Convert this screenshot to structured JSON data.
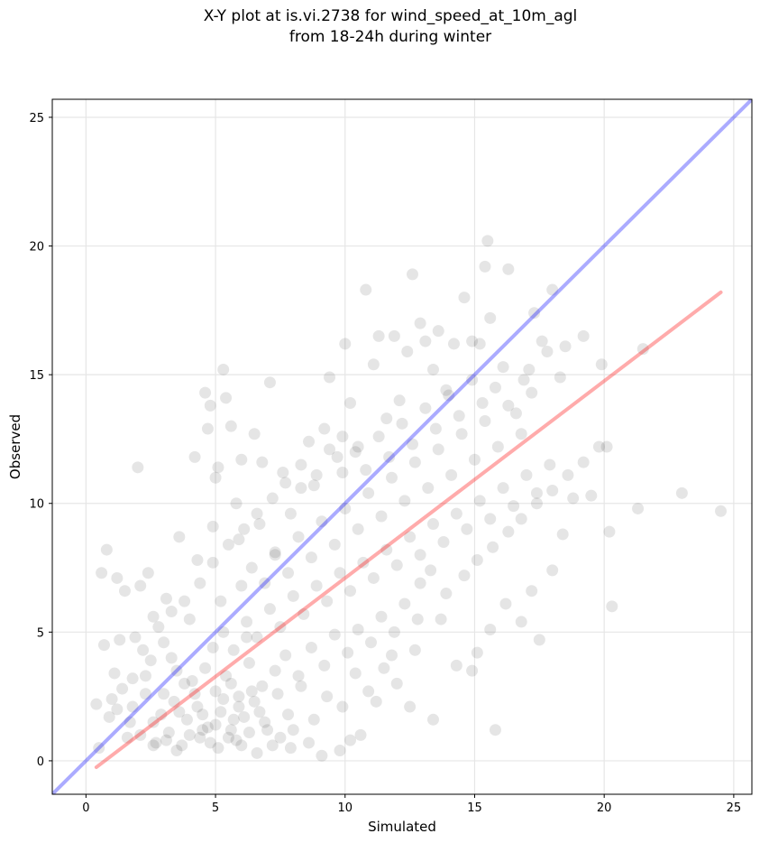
{
  "chart_data": {
    "type": "scatter",
    "title": "X-Y plot at is.vi.2738 for wind_speed_at_10m_agl",
    "subtitle": "from 18-24h during winter",
    "xlabel": "Simulated",
    "ylabel": "Observed",
    "xlim": [
      -1.3,
      25.7
    ],
    "ylim": [
      -1.3,
      25.7
    ],
    "x_ticks": [
      0,
      5,
      10,
      15,
      20,
      25
    ],
    "y_ticks": [
      0,
      5,
      10,
      15,
      20,
      25
    ],
    "grid": true,
    "marker_color": "#000000",
    "marker_alpha": 0.1,
    "lines": [
      {
        "role": "identity",
        "color": "#0000ff",
        "alpha": 0.33,
        "x": [
          -1.3,
          25.7
        ],
        "y": [
          -1.3,
          25.7
        ]
      },
      {
        "role": "regression-fit",
        "color": "#ff0000",
        "alpha": 0.33,
        "x": [
          0.4,
          24.5
        ],
        "y": [
          -0.25,
          18.2
        ]
      }
    ],
    "points": [
      [
        0.4,
        2.2
      ],
      [
        0.5,
        0.5
      ],
      [
        0.6,
        7.3
      ],
      [
        0.7,
        4.5
      ],
      [
        0.8,
        8.2
      ],
      [
        0.9,
        1.7
      ],
      [
        1.0,
        2.4
      ],
      [
        1.1,
        3.4
      ],
      [
        1.2,
        7.1
      ],
      [
        1.3,
        4.7
      ],
      [
        1.5,
        6.6
      ],
      [
        1.6,
        0.9
      ],
      [
        1.8,
        2.1
      ],
      [
        1.9,
        4.8
      ],
      [
        2.0,
        11.4
      ],
      [
        2.1,
        6.8
      ],
      [
        2.3,
        3.3
      ],
      [
        2.4,
        7.3
      ],
      [
        2.6,
        0.6
      ],
      [
        2.8,
        5.2
      ],
      [
        3.0,
        2.6
      ],
      [
        3.1,
        6.3
      ],
      [
        3.3,
        4.0
      ],
      [
        3.5,
        0.4
      ],
      [
        3.6,
        8.7
      ],
      [
        3.8,
        3.0
      ],
      [
        4.0,
        5.5
      ],
      [
        4.2,
        11.8
      ],
      [
        4.3,
        7.8
      ],
      [
        4.5,
        1.2
      ],
      [
        4.6,
        14.3
      ],
      [
        4.7,
        12.9
      ],
      [
        4.8,
        13.8
      ],
      [
        4.9,
        9.1
      ],
      [
        5.0,
        11.0
      ],
      [
        5.1,
        11.4
      ],
      [
        5.2,
        6.2
      ],
      [
        5.3,
        15.2
      ],
      [
        5.4,
        14.1
      ],
      [
        5.6,
        13.0
      ],
      [
        5.8,
        10.0
      ],
      [
        5.9,
        8.6
      ],
      [
        6.0,
        11.7
      ],
      [
        6.2,
        4.8
      ],
      [
        6.5,
        12.7
      ],
      [
        6.7,
        9.2
      ],
      [
        6.8,
        11.6
      ],
      [
        7.1,
        14.7
      ],
      [
        7.3,
        8.0
      ],
      [
        7.6,
        11.2
      ],
      [
        7.9,
        9.6
      ],
      [
        8.3,
        10.6
      ],
      [
        8.6,
        12.4
      ],
      [
        8.9,
        11.1
      ],
      [
        9.2,
        12.9
      ],
      [
        9.4,
        14.9
      ],
      [
        9.7,
        11.8
      ],
      [
        10.0,
        16.2
      ],
      [
        10.2,
        13.9
      ],
      [
        10.5,
        12.2
      ],
      [
        10.8,
        18.3
      ],
      [
        11.1,
        15.4
      ],
      [
        11.3,
        16.5
      ],
      [
        11.6,
        13.3
      ],
      [
        11.9,
        16.5
      ],
      [
        12.1,
        14.0
      ],
      [
        12.4,
        15.9
      ],
      [
        12.6,
        18.9
      ],
      [
        12.9,
        17.0
      ],
      [
        13.1,
        16.3
      ],
      [
        13.4,
        15.2
      ],
      [
        13.6,
        16.7
      ],
      [
        13.9,
        14.4
      ],
      [
        14.2,
        16.2
      ],
      [
        14.6,
        18.0
      ],
      [
        14.9,
        16.3
      ],
      [
        15.2,
        16.2
      ],
      [
        15.4,
        19.2
      ],
      [
        15.5,
        20.2
      ],
      [
        15.6,
        17.2
      ],
      [
        16.1,
        15.3
      ],
      [
        16.3,
        19.1
      ],
      [
        16.6,
        13.5
      ],
      [
        16.9,
        14.8
      ],
      [
        17.1,
        15.2
      ],
      [
        17.3,
        17.4
      ],
      [
        17.6,
        16.3
      ],
      [
        17.8,
        15.9
      ],
      [
        18.0,
        18.3
      ],
      [
        18.3,
        14.9
      ],
      [
        18.5,
        16.1
      ],
      [
        18.8,
        10.2
      ],
      [
        19.2,
        16.5
      ],
      [
        19.5,
        10.3
      ],
      [
        19.9,
        15.4
      ],
      [
        20.1,
        12.2
      ],
      [
        20.2,
        8.9
      ],
      [
        20.3,
        6.0
      ],
      [
        21.3,
        9.8
      ],
      [
        21.5,
        16.0
      ],
      [
        23.0,
        10.4
      ],
      [
        24.5,
        9.7
      ],
      [
        12.5,
        2.1
      ],
      [
        13.4,
        1.6
      ],
      [
        14.3,
        3.7
      ],
      [
        15.1,
        4.2
      ],
      [
        15.8,
        1.2
      ],
      [
        16.2,
        6.1
      ],
      [
        16.8,
        5.4
      ],
      [
        17.2,
        6.6
      ],
      [
        17.5,
        4.7
      ],
      [
        18.0,
        7.4
      ],
      [
        18.4,
        8.8
      ],
      [
        15.6,
        5.1
      ],
      [
        14.9,
        3.5
      ],
      [
        13.7,
        5.5
      ],
      [
        12.9,
        6.9
      ],
      [
        11.8,
        4.1
      ],
      [
        11.2,
        2.3
      ],
      [
        10.6,
        1.0
      ],
      [
        10.2,
        0.8
      ],
      [
        9.8,
        0.4
      ],
      [
        9.1,
        0.2
      ],
      [
        8.6,
        0.7
      ],
      [
        7.9,
        0.5
      ],
      [
        7.2,
        0.6
      ],
      [
        6.6,
        0.3
      ],
      [
        5.8,
        0.8
      ],
      [
        5.1,
        0.5
      ],
      [
        4.4,
        0.9
      ],
      [
        3.7,
        0.6
      ],
      [
        3.2,
        1.1
      ],
      [
        2.7,
        0.7
      ],
      [
        2.1,
        1.0
      ],
      [
        1.7,
        1.5
      ],
      [
        1.2,
        2.0
      ],
      [
        2.3,
        2.6
      ],
      [
        2.9,
        1.8
      ],
      [
        3.4,
        2.3
      ],
      [
        3.9,
        1.6
      ],
      [
        4.3,
        2.1
      ],
      [
        4.7,
        1.3
      ],
      [
        5.2,
        1.9
      ],
      [
        5.6,
        1.2
      ],
      [
        6.1,
        1.7
      ],
      [
        6.5,
        2.3
      ],
      [
        6.9,
        1.5
      ],
      [
        7.4,
        2.6
      ],
      [
        7.8,
        1.8
      ],
      [
        8.3,
        2.9
      ],
      [
        4.1,
        3.1
      ],
      [
        4.6,
        3.6
      ],
      [
        5.0,
        2.7
      ],
      [
        5.4,
        3.3
      ],
      [
        5.9,
        2.5
      ],
      [
        6.3,
        3.8
      ],
      [
        6.8,
        2.9
      ],
      [
        7.3,
        3.5
      ],
      [
        7.7,
        4.1
      ],
      [
        8.2,
        3.3
      ],
      [
        8.7,
        4.4
      ],
      [
        9.2,
        3.7
      ],
      [
        9.6,
        4.9
      ],
      [
        10.1,
        4.2
      ],
      [
        10.5,
        5.1
      ],
      [
        11.0,
        4.6
      ],
      [
        11.4,
        5.6
      ],
      [
        11.9,
        5.0
      ],
      [
        12.3,
        6.1
      ],
      [
        12.8,
        5.5
      ],
      [
        4.9,
        4.4
      ],
      [
        5.3,
        5.0
      ],
      [
        5.7,
        4.3
      ],
      [
        6.2,
        5.4
      ],
      [
        6.6,
        4.8
      ],
      [
        7.1,
        5.9
      ],
      [
        7.5,
        5.2
      ],
      [
        8.0,
        6.4
      ],
      [
        8.4,
        5.7
      ],
      [
        8.9,
        6.8
      ],
      [
        9.3,
        6.2
      ],
      [
        9.8,
        7.3
      ],
      [
        10.2,
        6.6
      ],
      [
        10.7,
        7.7
      ],
      [
        11.1,
        7.1
      ],
      [
        11.6,
        8.2
      ],
      [
        12.0,
        7.6
      ],
      [
        12.5,
        8.7
      ],
      [
        12.9,
        8.0
      ],
      [
        13.4,
        9.2
      ],
      [
        13.8,
        8.5
      ],
      [
        14.3,
        9.6
      ],
      [
        14.7,
        9.0
      ],
      [
        15.2,
        10.1
      ],
      [
        15.6,
        9.4
      ],
      [
        16.1,
        10.6
      ],
      [
        16.5,
        9.9
      ],
      [
        17.0,
        11.1
      ],
      [
        17.4,
        10.4
      ],
      [
        17.9,
        11.5
      ],
      [
        6.0,
        6.8
      ],
      [
        6.4,
        7.5
      ],
      [
        6.9,
        6.9
      ],
      [
        7.3,
        8.1
      ],
      [
        7.8,
        7.3
      ],
      [
        8.2,
        8.7
      ],
      [
        8.7,
        7.9
      ],
      [
        9.1,
        9.3
      ],
      [
        9.6,
        8.4
      ],
      [
        10.0,
        9.8
      ],
      [
        10.5,
        9.0
      ],
      [
        10.9,
        10.4
      ],
      [
        11.4,
        9.5
      ],
      [
        11.8,
        11.0
      ],
      [
        12.3,
        10.1
      ],
      [
        12.7,
        11.6
      ],
      [
        13.2,
        10.6
      ],
      [
        13.6,
        12.1
      ],
      [
        14.1,
        11.1
      ],
      [
        14.5,
        12.7
      ],
      [
        15.0,
        11.7
      ],
      [
        15.4,
        13.2
      ],
      [
        15.9,
        12.2
      ],
      [
        16.3,
        13.8
      ],
      [
        16.8,
        12.7
      ],
      [
        17.2,
        14.3
      ],
      [
        9.9,
        11.2
      ],
      [
        10.4,
        12.0
      ],
      [
        10.8,
        11.3
      ],
      [
        11.3,
        12.6
      ],
      [
        11.7,
        11.8
      ],
      [
        12.2,
        13.1
      ],
      [
        12.6,
        12.3
      ],
      [
        13.1,
        13.7
      ],
      [
        13.5,
        12.9
      ],
      [
        14.0,
        14.2
      ],
      [
        14.4,
        13.4
      ],
      [
        14.9,
        14.8
      ],
      [
        15.3,
        13.9
      ],
      [
        15.8,
        14.5
      ],
      [
        2.5,
        3.9
      ],
      [
        3.0,
        4.6
      ],
      [
        3.5,
        3.5
      ],
      [
        1.8,
        3.2
      ],
      [
        2.2,
        4.3
      ],
      [
        1.4,
        2.8
      ],
      [
        3.3,
        5.8
      ],
      [
        2.6,
        5.6
      ],
      [
        3.8,
        6.2
      ],
      [
        4.4,
        6.9
      ],
      [
        4.9,
        7.7
      ],
      [
        5.5,
        8.4
      ],
      [
        6.1,
        9.0
      ],
      [
        6.6,
        9.6
      ],
      [
        7.2,
        10.2
      ],
      [
        7.7,
        10.8
      ],
      [
        8.3,
        11.5
      ],
      [
        8.8,
        10.7
      ],
      [
        9.4,
        12.1
      ],
      [
        9.9,
        12.6
      ],
      [
        14.6,
        7.2
      ],
      [
        15.1,
        7.8
      ],
      [
        15.7,
        8.3
      ],
      [
        16.3,
        8.9
      ],
      [
        16.8,
        9.4
      ],
      [
        17.4,
        10.0
      ],
      [
        18.0,
        10.5
      ],
      [
        18.6,
        11.1
      ],
      [
        19.2,
        11.6
      ],
      [
        19.8,
        12.2
      ],
      [
        13.9,
        6.5
      ],
      [
        13.3,
        7.4
      ],
      [
        12.7,
        4.3
      ],
      [
        12.0,
        3.0
      ],
      [
        11.5,
        3.6
      ],
      [
        10.9,
        2.7
      ],
      [
        10.4,
        3.4
      ],
      [
        9.9,
        2.1
      ],
      [
        9.3,
        2.5
      ],
      [
        8.8,
        1.6
      ],
      [
        5.5,
        0.9
      ],
      [
        5.7,
        1.6
      ],
      [
        4.8,
        0.7
      ],
      [
        5.9,
        2.1
      ],
      [
        6.3,
        1.1
      ],
      [
        4.5,
        1.8
      ],
      [
        5.0,
        1.4
      ],
      [
        6.7,
        1.9
      ],
      [
        7.0,
        1.2
      ],
      [
        5.3,
        2.4
      ],
      [
        4.0,
        1.0
      ],
      [
        3.6,
        1.9
      ],
      [
        6.0,
        0.6
      ],
      [
        6.4,
        2.7
      ],
      [
        7.5,
        0.9
      ],
      [
        8.0,
        1.2
      ],
      [
        3.1,
        0.8
      ],
      [
        2.6,
        1.5
      ],
      [
        5.6,
        3.0
      ],
      [
        4.2,
        2.6
      ]
    ]
  }
}
